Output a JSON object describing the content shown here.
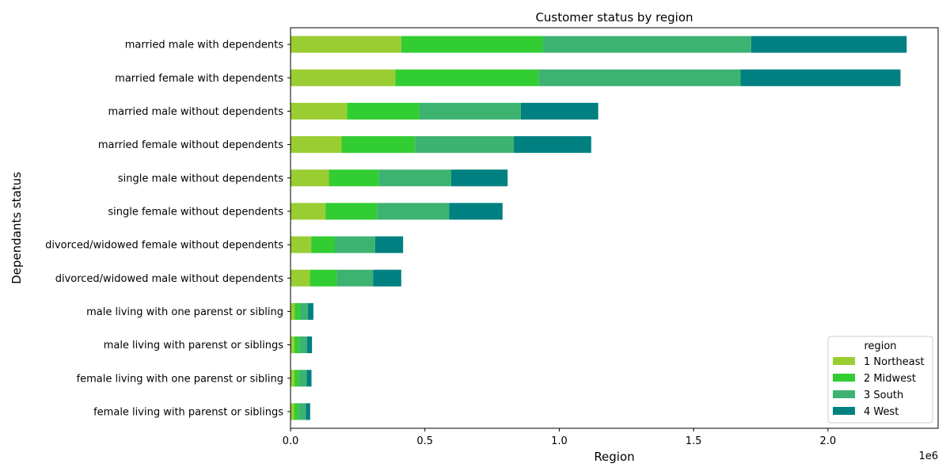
{
  "chart_data": {
    "type": "bar",
    "orientation": "horizontal",
    "stacked": true,
    "title": "Customer status by region",
    "xlabel": "Region",
    "ylabel": "Dependants status",
    "x_offset_label": "1e6",
    "xlim": [
      0,
      2410000
    ],
    "xticks": [
      0,
      500000,
      1000000,
      1500000,
      2000000
    ],
    "xtick_labels": [
      "0.0",
      "0.5",
      "1.0",
      "1.5",
      "2.0"
    ],
    "grid": false,
    "legend": {
      "title": "region",
      "placement": "bottom-right"
    },
    "categories": [
      "married male with dependents",
      "married female with dependents",
      "married male without dependents",
      "married female without dependents",
      "single male without dependents",
      "single female without dependents",
      "divorced/widowed female without dependents",
      "divorced/widowed male without dependents",
      "male living with one parenst or sibling",
      "male living with parenst or siblings",
      "female living with one parenst or sibling",
      "female living with parenst or siblings"
    ],
    "series": [
      {
        "name": "1 Northeast",
        "color": "#9acd32",
        "values": [
          412000,
          390000,
          210000,
          190000,
          143000,
          130000,
          77000,
          72000,
          15000,
          14000,
          14000,
          13000
        ]
      },
      {
        "name": "2 Midwest",
        "color": "#32cd32",
        "values": [
          528000,
          533000,
          270000,
          273000,
          185000,
          192000,
          88000,
          100000,
          20000,
          19000,
          18000,
          17000
        ]
      },
      {
        "name": "3 South",
        "color": "#3cb371",
        "values": [
          774000,
          752000,
          377000,
          368000,
          270000,
          268000,
          150000,
          135000,
          30000,
          28000,
          28000,
          27000
        ]
      },
      {
        "name": "4 West",
        "color": "#008080",
        "values": [
          579000,
          595000,
          288000,
          288000,
          210000,
          199000,
          104000,
          105000,
          20000,
          19000,
          18000,
          16000
        ]
      }
    ]
  }
}
